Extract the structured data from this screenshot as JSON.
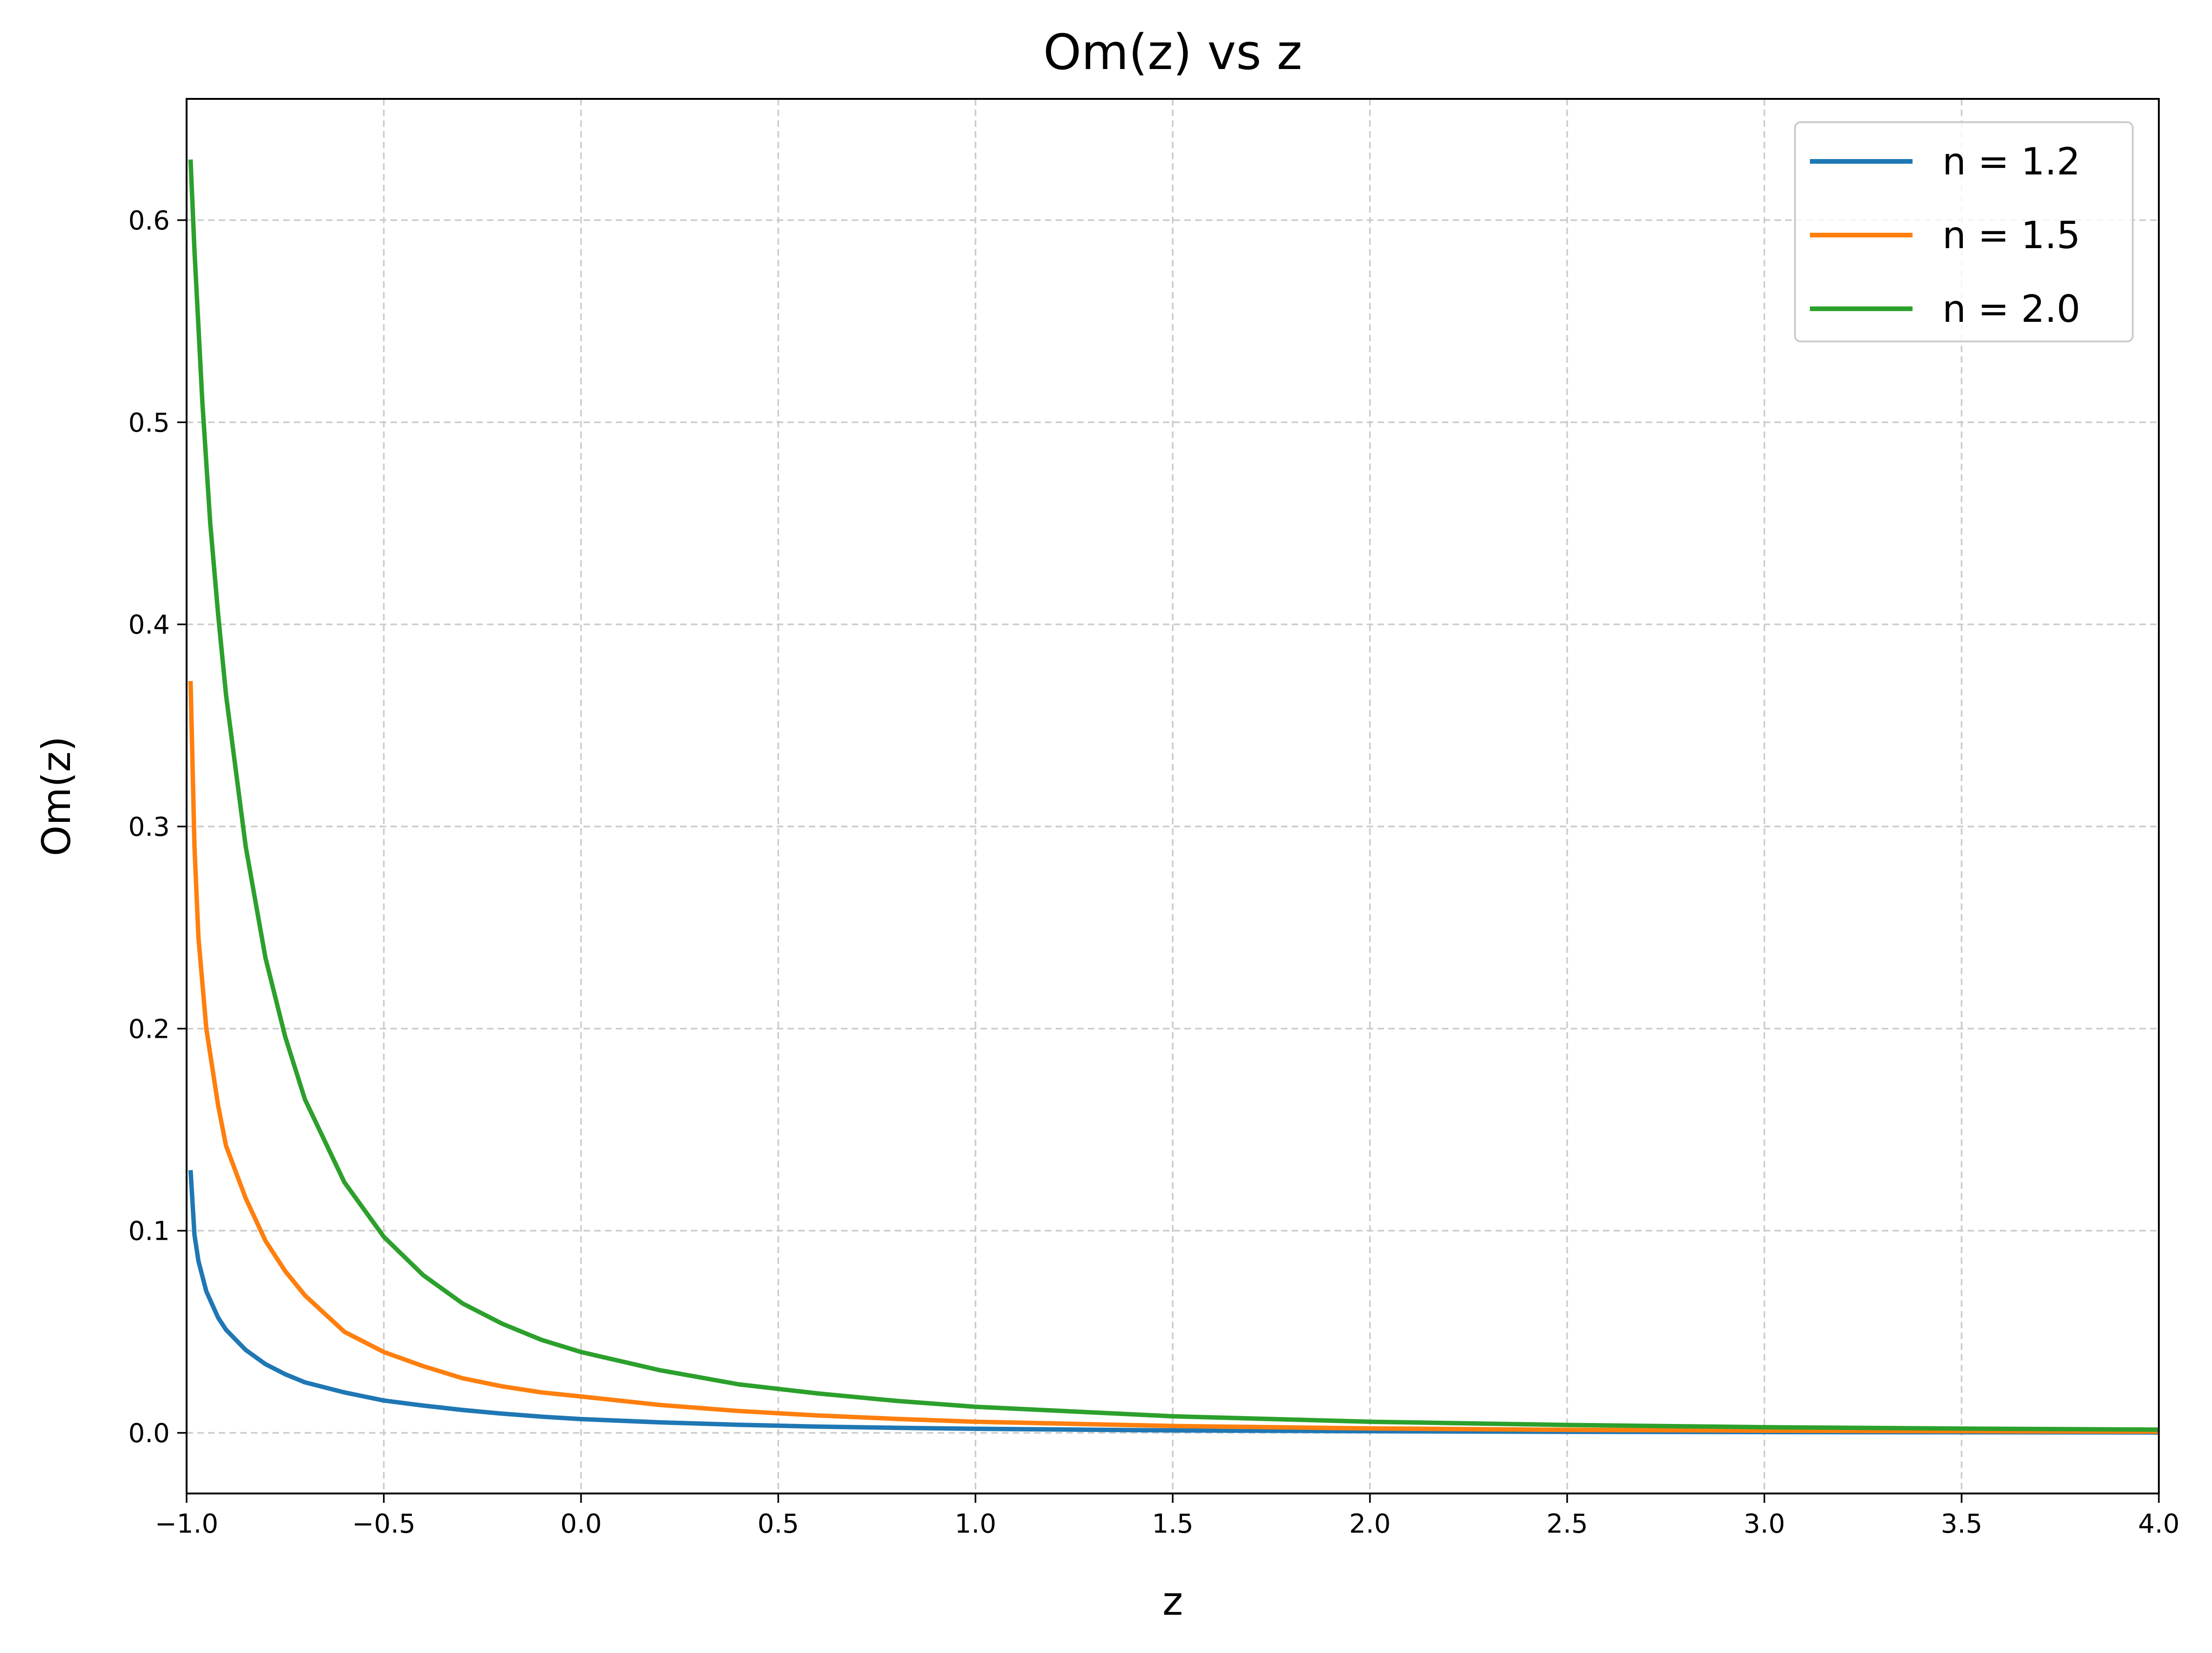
{
  "chart_data": {
    "type": "line",
    "title": "Om(z) vs z",
    "xlabel": "z",
    "ylabel": "Om(z)",
    "xlim": [
      -1.0,
      4.0
    ],
    "ylim": [
      -0.03,
      0.66
    ],
    "xticks": [
      -1.0,
      -0.5,
      0.0,
      0.5,
      1.0,
      1.5,
      2.0,
      2.5,
      3.0,
      3.5,
      4.0
    ],
    "xtick_labels": [
      "−1.0",
      "−0.5",
      "0.0",
      "0.5",
      "1.0",
      "1.5",
      "2.0",
      "2.5",
      "3.0",
      "3.5",
      "4.0"
    ],
    "yticks": [
      0.0,
      0.1,
      0.2,
      0.3,
      0.4,
      0.5,
      0.6
    ],
    "ytick_labels": [
      "0.0",
      "0.1",
      "0.2",
      "0.3",
      "0.4",
      "0.5",
      "0.6"
    ],
    "grid": true,
    "legend_position": "top-right",
    "series": [
      {
        "name": "n = 1.2",
        "color": "#1f77b4",
        "x": [
          -0.99,
          -0.98,
          -0.97,
          -0.95,
          -0.92,
          -0.9,
          -0.85,
          -0.8,
          -0.75,
          -0.7,
          -0.6,
          -0.5,
          -0.4,
          -0.3,
          -0.2,
          -0.1,
          0.0,
          0.2,
          0.4,
          0.6,
          0.8,
          1.0,
          1.5,
          2.0,
          2.5,
          3.0,
          3.5,
          4.0
        ],
        "y": [
          0.13,
          0.098,
          0.085,
          0.07,
          0.057,
          0.051,
          0.041,
          0.034,
          0.029,
          0.025,
          0.02,
          0.016,
          0.0135,
          0.0113,
          0.0095,
          0.008,
          0.0068,
          0.0052,
          0.004,
          0.0031,
          0.0025,
          0.002,
          0.0012,
          0.0008,
          0.0005,
          0.0004,
          0.0003,
          0.0002
        ]
      },
      {
        "name": "n = 1.5",
        "color": "#ff7f0e",
        "x": [
          -0.99,
          -0.98,
          -0.97,
          -0.95,
          -0.92,
          -0.9,
          -0.85,
          -0.8,
          -0.75,
          -0.7,
          -0.6,
          -0.5,
          -0.4,
          -0.3,
          -0.2,
          -0.1,
          0.0,
          0.2,
          0.4,
          0.6,
          0.8,
          1.0,
          1.5,
          2.0,
          2.5,
          3.0,
          3.5,
          4.0
        ],
        "y": [
          0.372,
          0.29,
          0.245,
          0.2,
          0.162,
          0.142,
          0.116,
          0.095,
          0.08,
          0.068,
          0.05,
          0.04,
          0.033,
          0.027,
          0.023,
          0.02,
          0.018,
          0.0138,
          0.0108,
          0.0086,
          0.0069,
          0.0055,
          0.0034,
          0.0022,
          0.0015,
          0.0011,
          0.0008,
          0.0006
        ]
      },
      {
        "name": "n = 2.0",
        "color": "#2ca02c",
        "x": [
          -0.99,
          -0.98,
          -0.96,
          -0.94,
          -0.92,
          -0.9,
          -0.85,
          -0.8,
          -0.75,
          -0.7,
          -0.6,
          -0.5,
          -0.4,
          -0.3,
          -0.2,
          -0.1,
          0.0,
          0.2,
          0.4,
          0.6,
          0.8,
          1.0,
          1.5,
          2.0,
          2.5,
          3.0,
          3.5,
          4.0
        ],
        "y": [
          0.63,
          0.585,
          0.51,
          0.45,
          0.405,
          0.365,
          0.29,
          0.235,
          0.196,
          0.165,
          0.124,
          0.097,
          0.078,
          0.064,
          0.054,
          0.046,
          0.04,
          0.031,
          0.024,
          0.0195,
          0.0158,
          0.0129,
          0.0082,
          0.0055,
          0.0039,
          0.0028,
          0.0021,
          0.0016
        ]
      }
    ]
  }
}
